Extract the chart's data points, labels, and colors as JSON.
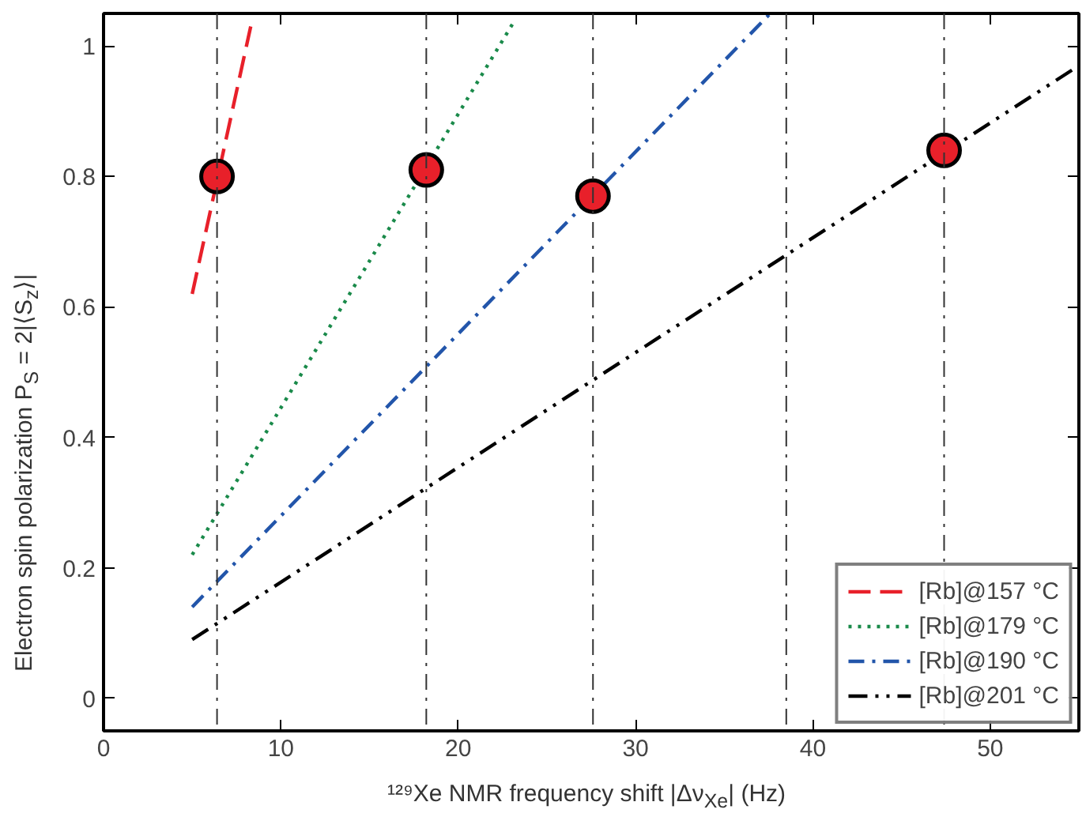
{
  "chart_data": {
    "type": "line",
    "xlabel": "¹²⁹Xe NMR frequency shift |Δν$_{Xe}$| (Hz)",
    "ylabel": "Electron spin polarization P$_{S}$ = 2|⟨S$_{z}$⟩|",
    "xlim": [
      0,
      55
    ],
    "ylim": [
      -0.05,
      1.05
    ],
    "xticks": [
      0,
      10,
      20,
      30,
      40,
      50
    ],
    "yticks": [
      0,
      0.2,
      0.4,
      0.6,
      0.8,
      1
    ],
    "grid": false,
    "legend": "bottom right",
    "series": [
      {
        "name": "[Rb]@157 °C",
        "color": "#e8202a",
        "line_style": "dashed",
        "x": [
          5.0,
          8.3
        ],
        "values": [
          0.62,
          1.03
        ]
      },
      {
        "name": "[Rb]@179 °C",
        "color": "#1a8a4a",
        "line_style": "dotted",
        "x": [
          5.0,
          23.2
        ],
        "values": [
          0.22,
          1.04
        ]
      },
      {
        "name": "[Rb]@190 °C",
        "color": "#2255aa",
        "line_style": "dashdot",
        "x": [
          5.0,
          37.6
        ],
        "values": [
          0.14,
          1.05
        ]
      },
      {
        "name": "[Rb]@201 °C",
        "color": "#000000",
        "line_style": "dashdotdot",
        "x": [
          5.0,
          55.0
        ],
        "values": [
          0.09,
          0.97
        ]
      },
      {
        "type": "scatter",
        "color": "#e8202a",
        "marker": "circle",
        "x": [
          6.4,
          18.2,
          27.6,
          47.4
        ],
        "values": [
          0.8,
          0.81,
          0.77,
          0.84
        ]
      }
    ],
    "ref_lines": [
      {
        "axis": "x",
        "value": 6.4,
        "color": "#333333",
        "line_style": "dashdot"
      },
      {
        "axis": "x",
        "value": 18.2,
        "color": "#333333",
        "line_style": "dashdot"
      },
      {
        "axis": "x",
        "value": 27.6,
        "color": "#333333",
        "line_style": "dashdot"
      },
      {
        "axis": "x",
        "value": 38.5,
        "color": "#333333",
        "line_style": "dashdot"
      },
      {
        "axis": "x",
        "value": 47.4,
        "color": "#333333",
        "line_style": "dashdot"
      }
    ]
  }
}
